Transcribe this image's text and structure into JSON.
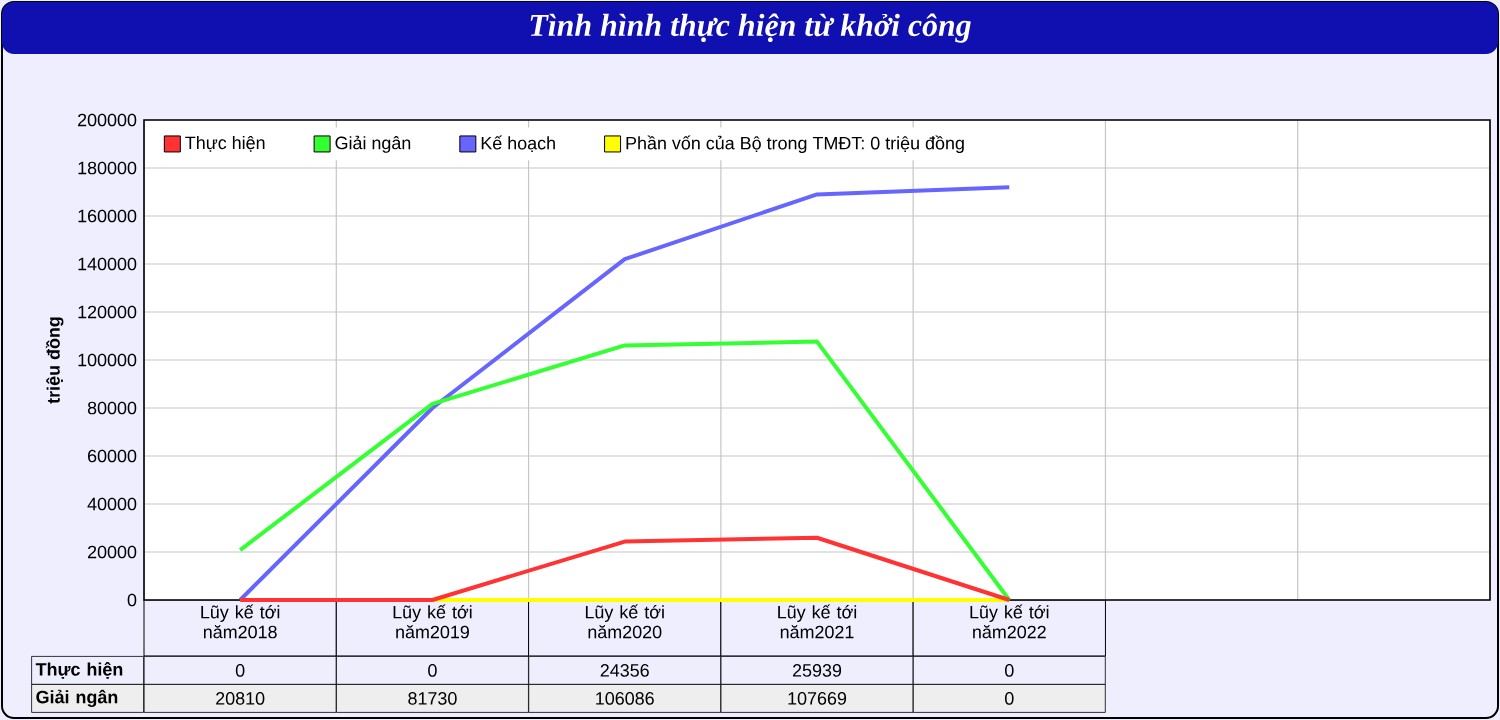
{
  "chart_data": {
    "type": "line",
    "title": "Tình hình thực hiện từ khởi công",
    "ylabel": "triệu đồng",
    "categories": [
      "Lũy kế tới năm2018",
      "Lũy kế tới năm2019",
      "Lũy kế tới năm2020",
      "Lũy kế tới năm2021",
      "Lũy kế tới năm2022"
    ],
    "series": [
      {
        "name": "Thực hiện",
        "color": "#ff3333",
        "values": [
          0,
          0,
          24356,
          25939,
          0
        ],
        "value_labels": [
          "0",
          "0",
          "24356",
          "25939",
          "0"
        ]
      },
      {
        "name": "Giải ngân",
        "color": "#33ff33",
        "values": [
          20810,
          81730,
          106086,
          107669,
          0
        ],
        "value_labels": [
          "20810",
          "81730",
          "106086",
          "107669",
          "0"
        ]
      },
      {
        "name": "Kế hoạch",
        "color": "#6666ff",
        "values": [
          0,
          80000,
          142000,
          169000,
          172000
        ]
      },
      {
        "name": "Phần vốn của Bộ trong TMĐT: 0 triệu đồng",
        "color": "#ffff00",
        "values": [
          0,
          0,
          0,
          0,
          0
        ]
      }
    ],
    "ylim": [
      0,
      200000
    ],
    "yticks": [
      0,
      20000,
      40000,
      60000,
      80000,
      100000,
      120000,
      140000,
      160000,
      180000,
      200000
    ],
    "grid": true,
    "legend": "top left"
  }
}
